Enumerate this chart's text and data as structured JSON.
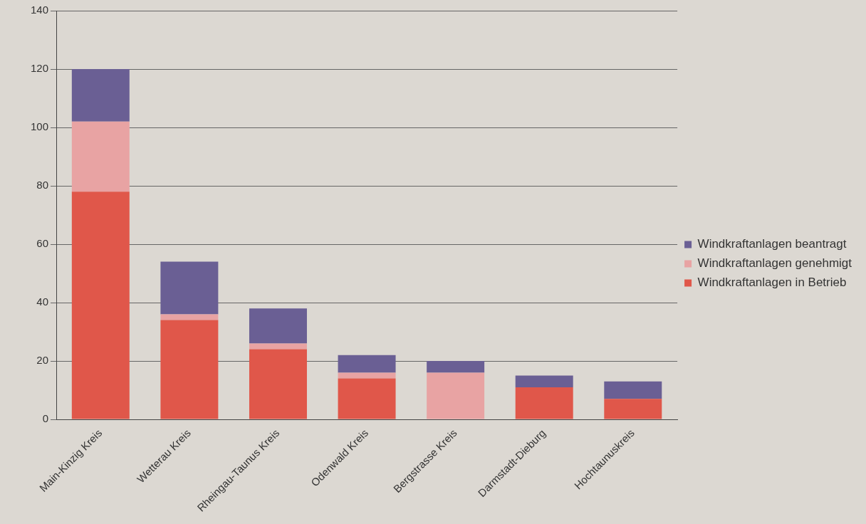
{
  "chart_data": {
    "type": "bar",
    "stacked": true,
    "categories": [
      "Main-Kinzig Kreis",
      "Wetterau Kreis",
      "Rheingau-Taunus Kreis",
      "Odenwald Kreis",
      "Bergstrasse Kreis",
      "Darmstadt-Dieburg",
      "Hochtaunuskreis"
    ],
    "series": [
      {
        "name": "Windkraftanlagen in Betrieb",
        "color": "#e0574a",
        "values": [
          78,
          34,
          24,
          14,
          0,
          11,
          7
        ]
      },
      {
        "name": "Windkraftanlagen genehmigt",
        "color": "#e8a3a3",
        "values": [
          24,
          2,
          2,
          2,
          16,
          0,
          0
        ]
      },
      {
        "name": "Windkraftanlagen beantragt",
        "color": "#6a5f94",
        "values": [
          18,
          18,
          12,
          6,
          4,
          4,
          6
        ]
      }
    ],
    "ylim": [
      0,
      140
    ],
    "yticks": [
      0,
      20,
      40,
      60,
      80,
      100,
      120,
      140
    ],
    "grid": "y",
    "legend": "right"
  }
}
